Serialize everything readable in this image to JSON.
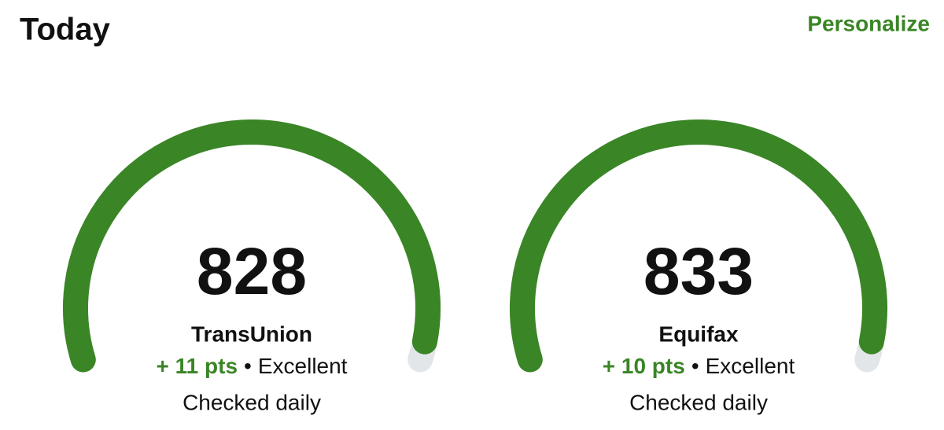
{
  "header": {
    "title": "Today",
    "action": "Personalize"
  },
  "gauges": [
    {
      "score": 828,
      "bureau": "TransUnion",
      "change": "+ 11 pts",
      "separator": "•",
      "rating": "Excellent",
      "note": "Checked daily"
    },
    {
      "score": 833,
      "bureau": "Equifax",
      "change": "+ 10 pts",
      "separator": "•",
      "rating": "Excellent",
      "note": "Checked daily"
    }
  ]
}
